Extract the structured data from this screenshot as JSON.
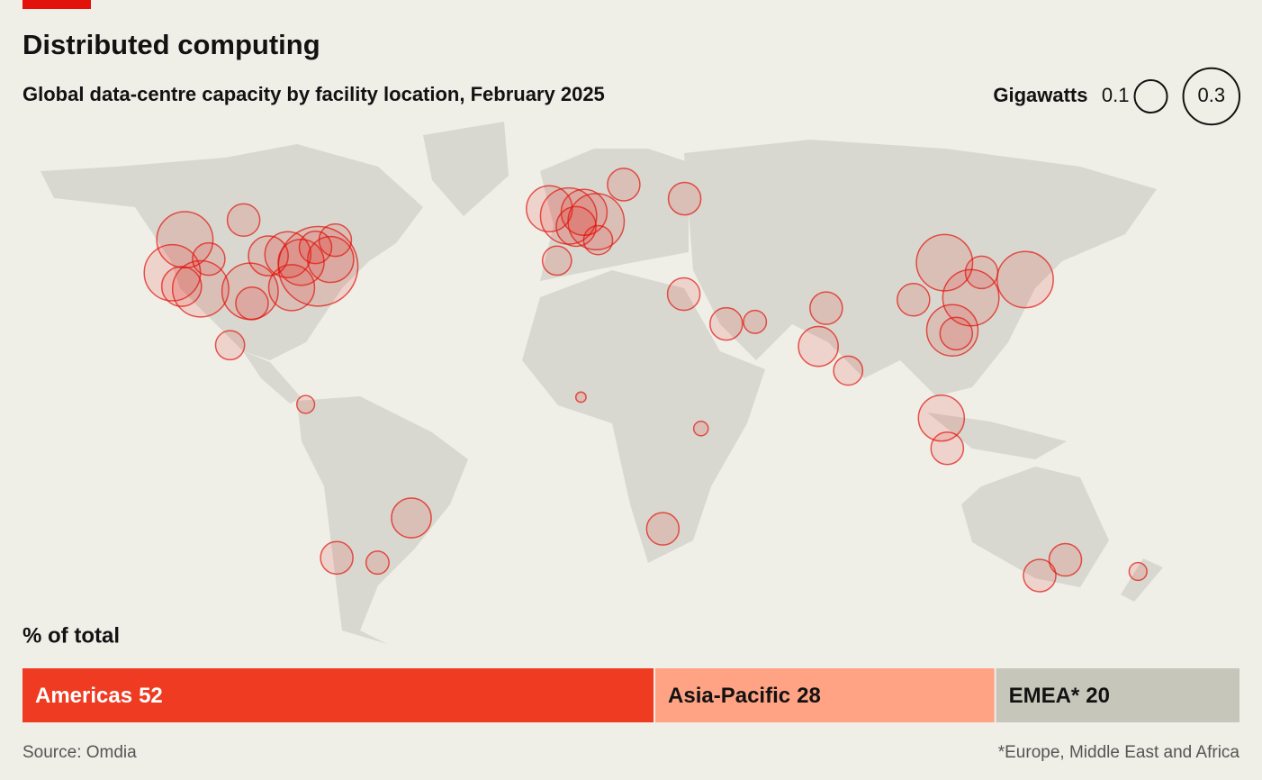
{
  "chart_data": [
    {
      "type": "bubble-map",
      "title": "Distributed computing",
      "subtitle": "Global data-centre capacity by facility location, February 2025",
      "legend_title": "Gigawatts",
      "size_legend": [
        0.1,
        0.3
      ],
      "color": "#e3120b",
      "sites": [
        {
          "lon": -77.5,
          "lat": 39.0,
          "gw": 0.6
        },
        {
          "lon": -96.8,
          "lat": 32.8,
          "gw": 0.3
        },
        {
          "lon": -112.0,
          "lat": 33.4,
          "gw": 0.3
        },
        {
          "lon": -122.0,
          "lat": 37.4,
          "gw": 0.3
        },
        {
          "lon": -121.0,
          "lat": 45.6,
          "gw": 0.3
        },
        {
          "lon": -87.6,
          "lat": 41.9,
          "gw": 0.2
        },
        {
          "lon": -84.4,
          "lat": 33.7,
          "gw": 0.2
        },
        {
          "lon": -74.0,
          "lat": 40.7,
          "gw": 0.2
        },
        {
          "lon": -83.0,
          "lat": 40.0,
          "gw": 0.2
        },
        {
          "lon": -93.6,
          "lat": 41.6,
          "gw": 0.15
        },
        {
          "lon": -111.9,
          "lat": 40.8,
          "gw": 0.1
        },
        {
          "lon": -118.0,
          "lat": 34.0,
          "gw": 0.15
        },
        {
          "lon": -73.6,
          "lat": 45.5,
          "gw": 0.1
        },
        {
          "lon": -79.4,
          "lat": 43.7,
          "gw": 0.1
        },
        {
          "lon": -99.1,
          "lat": 19.4,
          "gw": 0.08
        },
        {
          "lon": -95.4,
          "lat": 29.8,
          "gw": 0.1
        },
        {
          "lon": -104.0,
          "lat": 50.5,
          "gw": 0.1
        },
        {
          "lon": -46.6,
          "lat": -23.5,
          "gw": 0.15
        },
        {
          "lon": -70.6,
          "lat": -33.4,
          "gw": 0.1
        },
        {
          "lon": -58.4,
          "lat": -34.6,
          "gw": 0.05
        },
        {
          "lon": -74.0,
          "lat": 4.7,
          "gw": 0.03
        },
        {
          "lon": -0.1,
          "lat": 51.5,
          "gw": 0.3
        },
        {
          "lon": 8.7,
          "lat": 50.1,
          "gw": 0.3
        },
        {
          "lon": 4.9,
          "lat": 52.4,
          "gw": 0.2
        },
        {
          "lon": 2.3,
          "lat": 48.9,
          "gw": 0.15
        },
        {
          "lon": -6.3,
          "lat": 53.3,
          "gw": 0.2
        },
        {
          "lon": -3.7,
          "lat": 40.4,
          "gw": 0.08
        },
        {
          "lon": 9.2,
          "lat": 45.5,
          "gw": 0.08
        },
        {
          "lon": 18.0,
          "lat": 59.3,
          "gw": 0.1
        },
        {
          "lon": 37.6,
          "lat": 55.8,
          "gw": 0.1
        },
        {
          "lon": 28.0,
          "lat": -26.2,
          "gw": 0.1
        },
        {
          "lon": 46.7,
          "lat": 24.7,
          "gw": 0.1
        },
        {
          "lon": 55.3,
          "lat": 25.2,
          "gw": 0.05
        },
        {
          "lon": 34.8,
          "lat": 32.1,
          "gw": 0.1
        },
        {
          "lon": 3.4,
          "lat": 6.5,
          "gw": 0.01
        },
        {
          "lon": 36.8,
          "lat": -1.3,
          "gw": 0.02
        },
        {
          "lon": 72.9,
          "lat": 19.1,
          "gw": 0.15
        },
        {
          "lon": 77.2,
          "lat": 28.6,
          "gw": 0.1
        },
        {
          "lon": 80.3,
          "lat": 13.1,
          "gw": 0.08
        },
        {
          "lon": 103.8,
          "lat": 1.3,
          "gw": 0.2
        },
        {
          "lon": 106.8,
          "lat": -6.2,
          "gw": 0.1
        },
        {
          "lon": 116.4,
          "lat": 39.9,
          "gw": 0.3
        },
        {
          "lon": 121.5,
          "lat": 31.2,
          "gw": 0.3
        },
        {
          "lon": 113.3,
          "lat": 23.1,
          "gw": 0.25
        },
        {
          "lon": 104.0,
          "lat": 30.7,
          "gw": 0.1
        },
        {
          "lon": 139.7,
          "lat": 35.7,
          "gw": 0.3
        },
        {
          "lon": 127.0,
          "lat": 37.5,
          "gw": 0.1
        },
        {
          "lon": 114.2,
          "lat": 22.3,
          "gw": 0.1
        },
        {
          "lon": 151.2,
          "lat": -33.9,
          "gw": 0.1
        },
        {
          "lon": 145.0,
          "lat": -37.8,
          "gw": 0.1
        },
        {
          "lon": 174.8,
          "lat": -36.8,
          "gw": 0.03
        }
      ]
    },
    {
      "type": "stacked-bar",
      "title": "% of total",
      "categories": [
        "Americas",
        "Asia-Pacific",
        "EMEA*"
      ],
      "values": [
        52,
        28,
        20
      ],
      "colors": [
        "#ee3b22",
        "#ffa384",
        "#c7c6bb"
      ],
      "xlim": [
        0,
        100
      ]
    }
  ],
  "source": "Source: Omdia",
  "note": "*Europe, Middle East and Africa"
}
